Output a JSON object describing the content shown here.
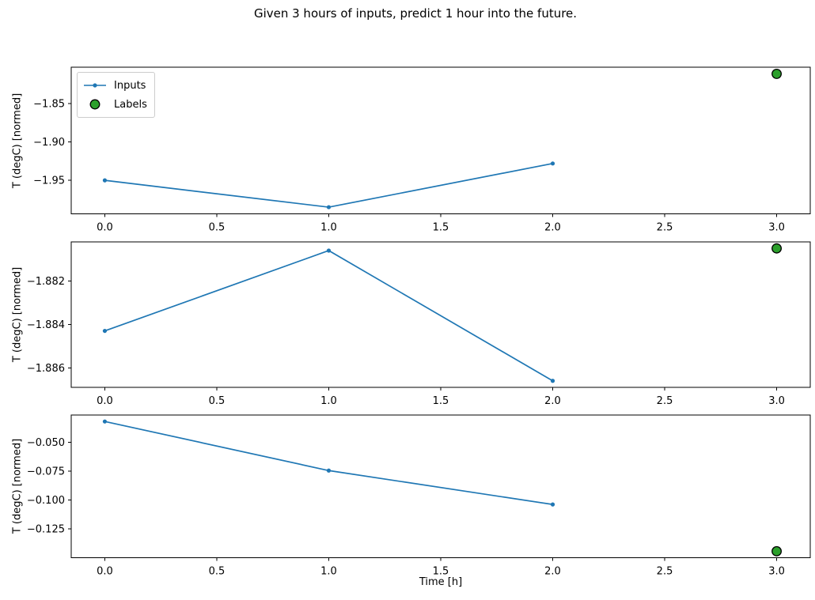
{
  "title": "Given 3 hours of inputs, predict 1 hour into the future.",
  "legend": {
    "inputs_label": "Inputs",
    "labels_label": "Labels"
  },
  "chart_data": {
    "type": "line",
    "title": "Given 3 hours of inputs, predict 1 hour into the future.",
    "xlabel": "Time [h]",
    "grid": false,
    "legend_entries": [
      "Inputs",
      "Labels"
    ],
    "legend_position": "upper left of top subplot",
    "xlim": [
      -0.15,
      3.15
    ],
    "xticks": {
      "values": [
        0,
        0.5,
        1,
        1.5,
        2,
        2.5,
        3
      ],
      "labels": [
        "0.0",
        "0.5",
        "1.0",
        "1.5",
        "2.0",
        "2.5",
        "3.0"
      ]
    },
    "colors": {
      "inputs_line": "#1f77b4",
      "labels_marker": "#2ca02c",
      "marker_edge": "#000000",
      "spine": "#000000"
    },
    "subplots": [
      {
        "ylabel": "T (degC) [normed]",
        "ylim": [
          -1.9937,
          -1.8023
        ],
        "yticks": {
          "values": [
            -1.85,
            -1.9,
            -1.95
          ],
          "labels": [
            "−1.85",
            "−1.90",
            "−1.95"
          ]
        },
        "series": [
          {
            "name": "Inputs",
            "type": "line",
            "x": [
              0,
              1,
              2
            ],
            "y": [
              -1.95,
              -1.985,
              -1.928
            ]
          },
          {
            "name": "Labels",
            "type": "scatter",
            "x": [
              3
            ],
            "y": [
              -1.811
            ]
          }
        ]
      },
      {
        "ylabel": "T (degC) [normed]",
        "ylim": [
          -1.8869,
          -1.8802
        ],
        "yticks": {
          "values": [
            -1.882,
            -1.884,
            -1.886
          ],
          "labels": [
            "−1.882",
            "−1.884",
            "−1.886"
          ]
        },
        "series": [
          {
            "name": "Inputs",
            "type": "line",
            "x": [
              0,
              1,
              2
            ],
            "y": [
              -1.8843,
              -1.8806,
              -1.8866
            ]
          },
          {
            "name": "Labels",
            "type": "scatter",
            "x": [
              3
            ],
            "y": [
              -1.8805
            ]
          }
        ]
      },
      {
        "ylabel": "T (degC) [normed]",
        "ylim": [
          -0.1502,
          -0.0264
        ],
        "yticks": {
          "values": [
            -0.05,
            -0.075,
            -0.1,
            -0.125
          ],
          "labels": [
            "−0.050",
            "−0.075",
            "−0.100",
            "−0.125"
          ]
        },
        "series": [
          {
            "name": "Inputs",
            "type": "line",
            "x": [
              0,
              1,
              2
            ],
            "y": [
              -0.032,
              -0.0746,
              -0.104
            ]
          },
          {
            "name": "Labels",
            "type": "scatter",
            "x": [
              3
            ],
            "y": [
              -0.1446
            ]
          }
        ]
      }
    ]
  }
}
